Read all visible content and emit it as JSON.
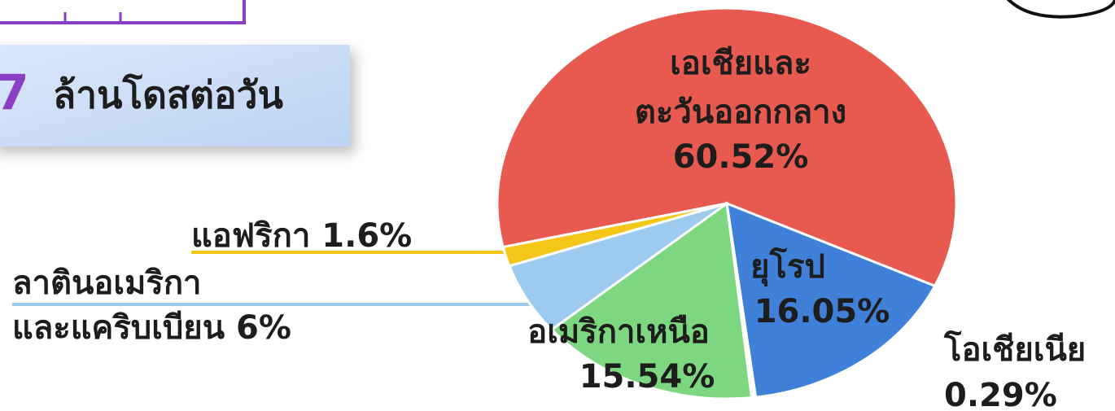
{
  "chart_data": {
    "type": "pie",
    "annotations": [
      "7",
      "ล้านโดสต่อวัน"
    ],
    "categories": [
      [
        "เอเชียและ",
        "ตะวันออกกลาง"
      ],
      [
        "ยุโรป"
      ],
      [
        "โอเชียเนีย"
      ],
      [
        "อเมริกาเหนือ"
      ],
      [
        "ลาตินอเมริกา",
        "และแคริบเบียน"
      ],
      [
        "แอฟริกา"
      ]
    ],
    "values": [
      60.52,
      16.05,
      0.29,
      15.54,
      6,
      1.6
    ],
    "value_labels": [
      "60.52%",
      "16.05%",
      "0.29%",
      "15.54%",
      "6%",
      "1.6%"
    ],
    "colors": [
      "#e85a50",
      "#3f80d8",
      "#ffffff",
      "#7dd680",
      "#9dcbef",
      "#f5c518"
    ]
  }
}
